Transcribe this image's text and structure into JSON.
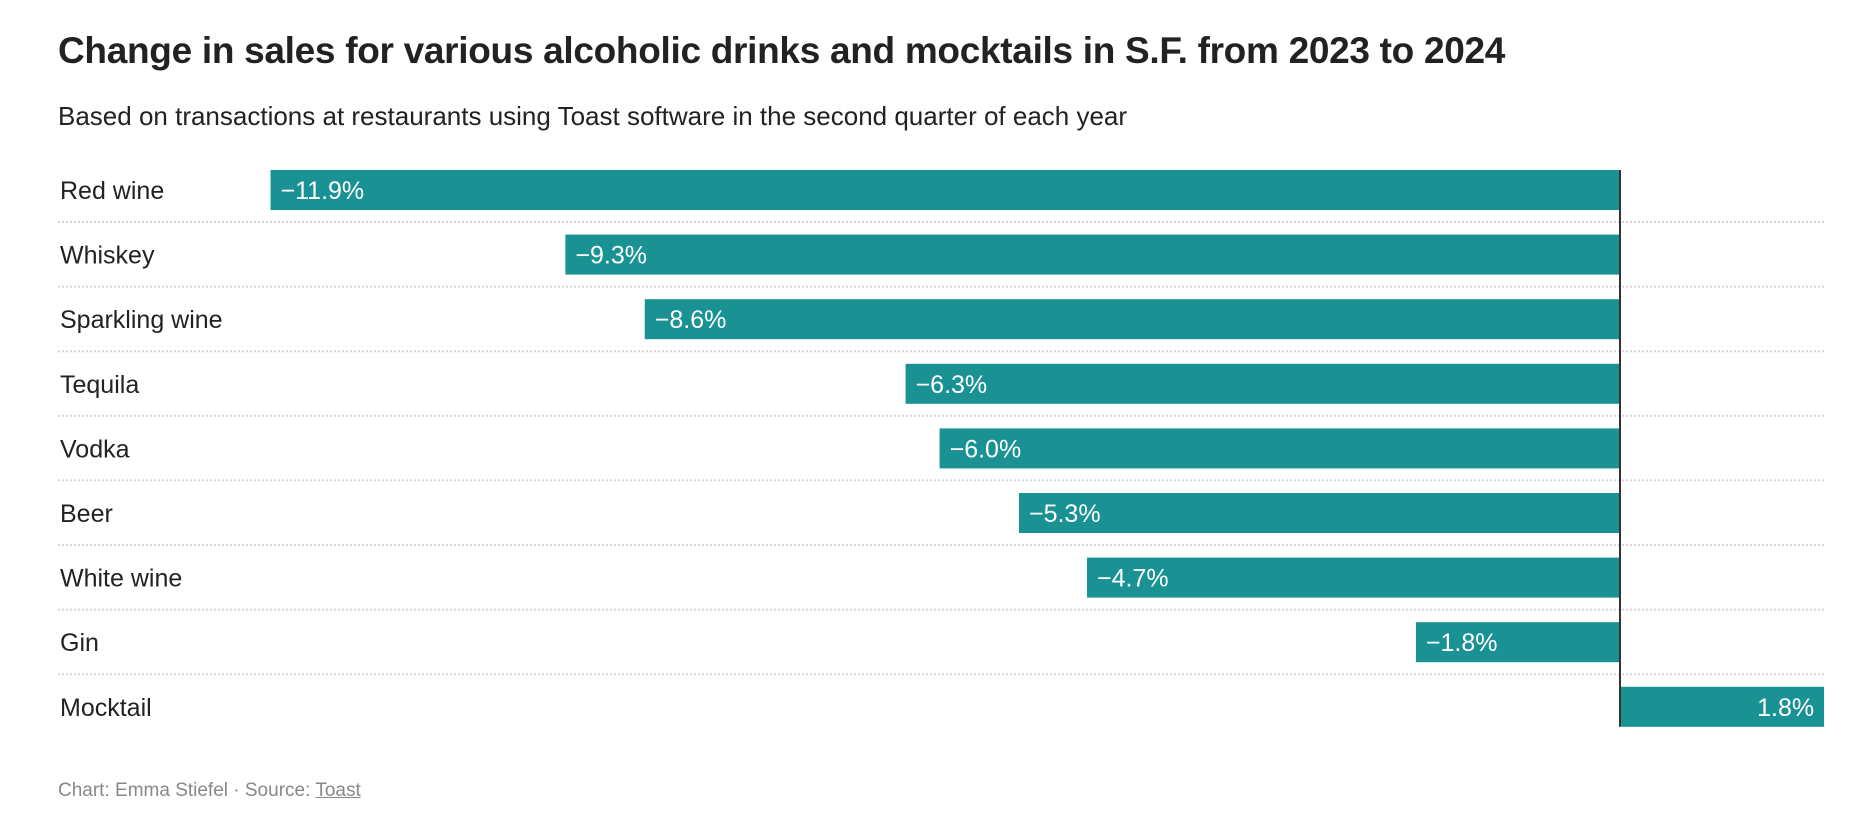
{
  "chart_data": {
    "type": "bar",
    "orientation": "horizontal",
    "title": "Change in sales for various alcoholic drinks and mocktails in S.F. from 2023 to 2024",
    "subtitle": "Based on transactions at restaurants using Toast software in the second quarter of each year",
    "categories": [
      "Red wine",
      "Whiskey",
      "Sparkling wine",
      "Tequila",
      "Vodka",
      "Beer",
      "White wine",
      "Gin",
      "Mocktail"
    ],
    "values": [
      -11.9,
      -9.3,
      -8.6,
      -6.3,
      -6.0,
      -5.3,
      -4.7,
      -1.8,
      1.8
    ],
    "labels": [
      "−11.9%",
      "−9.3%",
      "−8.6%",
      "−6.3%",
      "−6.0%",
      "−5.3%",
      "−4.7%",
      "−1.8%",
      "1.8%"
    ],
    "unit": "%",
    "xlim": [
      -11.9,
      1.8
    ],
    "grid": false,
    "color": "#1a9294"
  },
  "footer": {
    "credit": "Chart: Emma Stiefel · Source: ",
    "source_link": "Toast"
  }
}
